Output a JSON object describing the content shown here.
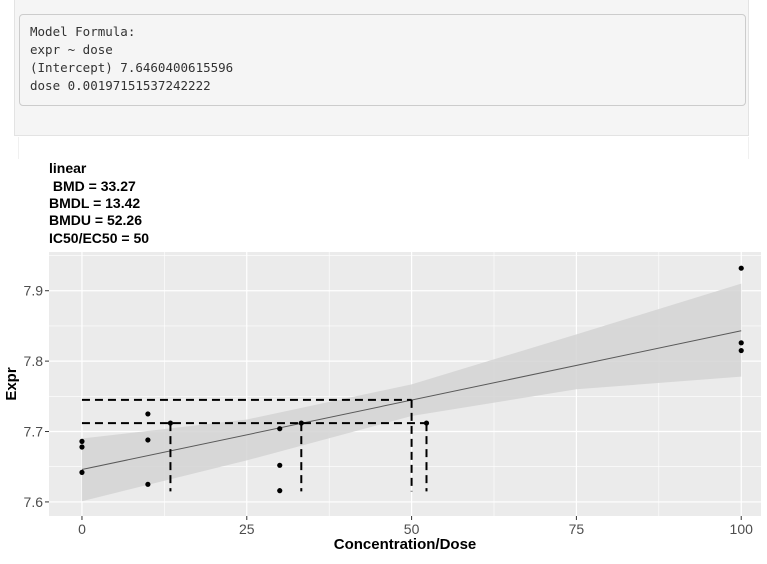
{
  "output": {
    "lines": [
      "Model Formula:",
      "expr ~ dose",
      "(Intercept) 7.6460400615596",
      "dose 0.00197151537242222"
    ]
  },
  "colors": {
    "panel_bg": "#ebebeb",
    "grid": "#ffffff",
    "band": "#d3d3d3",
    "fit_line": "#595959",
    "points": "#000000",
    "guides": "#000000"
  },
  "chart_data": {
    "type": "scatter",
    "title_lines": [
      "linear",
      " BMD = 33.27",
      "BMDL = 13.42",
      "BMDU = 52.26",
      "IC50/EC50 = 50"
    ],
    "xlabel": "Concentration/Dose",
    "ylabel": "Expr",
    "xlim": [
      -5,
      103
    ],
    "ylim": [
      7.58,
      7.955
    ],
    "x_ticks": [
      0,
      25,
      50,
      75,
      100
    ],
    "x_tick_labels": [
      "0",
      "25",
      "50",
      "75",
      "100"
    ],
    "y_ticks": [
      7.6,
      7.7,
      7.8,
      7.9
    ],
    "y_tick_labels": [
      "7.6",
      "7.7",
      "7.8",
      "7.9"
    ],
    "grid": true,
    "points": [
      {
        "x": 0,
        "y": 7.686
      },
      {
        "x": 0,
        "y": 7.678
      },
      {
        "x": 0,
        "y": 7.642
      },
      {
        "x": 10,
        "y": 7.725
      },
      {
        "x": 10,
        "y": 7.688
      },
      {
        "x": 10,
        "y": 7.625
      },
      {
        "x": 30,
        "y": 7.704
      },
      {
        "x": 30,
        "y": 7.652
      },
      {
        "x": 30,
        "y": 7.616
      },
      {
        "x": 100,
        "y": 7.932
      },
      {
        "x": 100,
        "y": 7.826
      },
      {
        "x": 100,
        "y": 7.815
      },
      {
        "x": 13.42,
        "y": 7.712
      },
      {
        "x": 33.27,
        "y": 7.712
      },
      {
        "x": 52.26,
        "y": 7.712
      }
    ],
    "fit": {
      "intercept": 7.6460400615596,
      "slope": 0.00197151537242222,
      "x_range": [
        0,
        100
      ]
    },
    "confidence_band": [
      {
        "x": 0,
        "lower": 7.601,
        "upper": 7.69
      },
      {
        "x": 25,
        "lower": 7.659,
        "upper": 7.717
      },
      {
        "x": 50,
        "lower": 7.722,
        "upper": 7.767
      },
      {
        "x": 75,
        "lower": 7.76,
        "upper": 7.838
      },
      {
        "x": 100,
        "lower": 7.778,
        "upper": 7.91
      }
    ],
    "guide_segments": [
      {
        "x1": 0,
        "y1": 7.745,
        "x2": 50,
        "y2": 7.745
      },
      {
        "x1": 0,
        "y1": 7.712,
        "x2": 52.26,
        "y2": 7.712
      },
      {
        "x1": 13.42,
        "y1": 7.712,
        "x2": 13.42,
        "y2": 7.615
      },
      {
        "x1": 33.27,
        "y1": 7.712,
        "x2": 33.27,
        "y2": 7.615
      },
      {
        "x1": 50,
        "y1": 7.745,
        "x2": 50,
        "y2": 7.615
      },
      {
        "x1": 52.26,
        "y1": 7.712,
        "x2": 52.26,
        "y2": 7.615
      }
    ]
  }
}
